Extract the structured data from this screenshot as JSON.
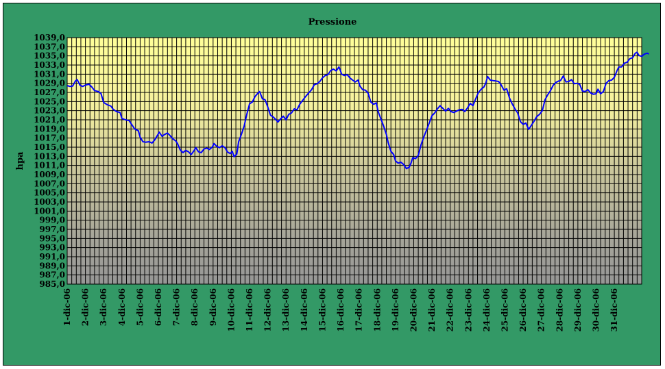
{
  "chart_data": {
    "type": "line",
    "title": "Pressione",
    "xlabel": "",
    "ylabel": "hpa",
    "ylim": [
      985.0,
      1039.0
    ],
    "y_ticks": [
      "1039,0",
      "1037,0",
      "1035,0",
      "1033,0",
      "1031,0",
      "1029,0",
      "1027,0",
      "1025,0",
      "1023,0",
      "1021,0",
      "1019,0",
      "1017,0",
      "1015,0",
      "1013,0",
      "1011,0",
      "1009,0",
      "1007,0",
      "1005,0",
      "1003,0",
      "1001,0",
      "999,0",
      "997,0",
      "995,0",
      "993,0",
      "991,0",
      "989,0",
      "987,0",
      "985,0"
    ],
    "categories": [
      "1-dic-06",
      "2-dic-06",
      "3-dic-06",
      "4-dic-06",
      "5-dic-06",
      "6-dic-06",
      "7-dic-06",
      "8-dic-06",
      "9-dic-06",
      "10-dic-06",
      "11-dic-06",
      "12-dic-06",
      "13-dic-06",
      "14-dic-06",
      "15-dic-06",
      "16-dic-06",
      "17-dic-06",
      "18-dic-06",
      "19-dic-06",
      "20-dic-06",
      "21-dic-06",
      "22-dic-06",
      "23-dic-06",
      "24-dic-06",
      "25-dic-06",
      "26-dic-06",
      "27-dic-06",
      "28-dic-06",
      "29-dic-06",
      "30-dic-06",
      "31-dic-06"
    ],
    "x_range_days": [
      0,
      31.5
    ],
    "grid": true,
    "series": [
      {
        "name": "",
        "color": "#0000ff",
        "points": [
          [
            0.0,
            1028.5
          ],
          [
            0.15,
            1028.3
          ],
          [
            0.3,
            1028.4
          ],
          [
            0.45,
            1029.5
          ],
          [
            0.55,
            1029.8
          ],
          [
            0.7,
            1028.6
          ],
          [
            0.85,
            1028.3
          ],
          [
            1.0,
            1028.6
          ],
          [
            1.2,
            1028.8
          ],
          [
            1.35,
            1028.2
          ],
          [
            1.5,
            1027.4
          ],
          [
            1.7,
            1027.2
          ],
          [
            1.85,
            1026.8
          ],
          [
            2.0,
            1024.8
          ],
          [
            2.2,
            1024.3
          ],
          [
            2.4,
            1024.0
          ],
          [
            2.5,
            1023.4
          ],
          [
            2.7,
            1022.8
          ],
          [
            2.9,
            1022.6
          ],
          [
            3.0,
            1021.3
          ],
          [
            3.2,
            1021.0
          ],
          [
            3.4,
            1020.8
          ],
          [
            3.5,
            1020.2
          ],
          [
            3.7,
            1019.0
          ],
          [
            3.9,
            1018.6
          ],
          [
            4.0,
            1017.2
          ],
          [
            4.15,
            1016.2
          ],
          [
            4.3,
            1016.1
          ],
          [
            4.5,
            1016.2
          ],
          [
            4.65,
            1015.9
          ],
          [
            4.8,
            1016.6
          ],
          [
            4.95,
            1017.6
          ],
          [
            5.05,
            1018.3
          ],
          [
            5.2,
            1017.4
          ],
          [
            5.35,
            1017.8
          ],
          [
            5.5,
            1018.1
          ],
          [
            5.65,
            1017.5
          ],
          [
            5.8,
            1016.8
          ],
          [
            5.95,
            1016.4
          ],
          [
            6.05,
            1015.8
          ],
          [
            6.2,
            1014.4
          ],
          [
            6.35,
            1013.8
          ],
          [
            6.5,
            1014.3
          ],
          [
            6.65,
            1014.0
          ],
          [
            6.8,
            1013.4
          ],
          [
            6.95,
            1014.2
          ],
          [
            7.05,
            1014.9
          ],
          [
            7.2,
            1014.0
          ],
          [
            7.35,
            1013.8
          ],
          [
            7.5,
            1014.6
          ],
          [
            7.65,
            1014.8
          ],
          [
            7.8,
            1014.5
          ],
          [
            7.95,
            1015.0
          ],
          [
            8.05,
            1015.8
          ],
          [
            8.2,
            1015.2
          ],
          [
            8.35,
            1014.9
          ],
          [
            8.5,
            1015.3
          ],
          [
            8.65,
            1014.9
          ],
          [
            8.8,
            1013.9
          ],
          [
            8.95,
            1013.6
          ],
          [
            9.05,
            1014.1
          ],
          [
            9.15,
            1012.9
          ],
          [
            9.3,
            1013.5
          ],
          [
            9.4,
            1016.2
          ],
          [
            9.55,
            1017.8
          ],
          [
            9.7,
            1019.6
          ],
          [
            9.85,
            1022.2
          ],
          [
            10.0,
            1024.5
          ],
          [
            10.15,
            1024.9
          ],
          [
            10.3,
            1026.1
          ],
          [
            10.45,
            1026.8
          ],
          [
            10.55,
            1027.2
          ],
          [
            10.7,
            1025.6
          ],
          [
            10.85,
            1025.4
          ],
          [
            11.0,
            1023.8
          ],
          [
            11.15,
            1022.0
          ],
          [
            11.3,
            1021.6
          ],
          [
            11.45,
            1021.0
          ],
          [
            11.55,
            1020.5
          ],
          [
            11.7,
            1021.2
          ],
          [
            11.85,
            1021.8
          ],
          [
            12.0,
            1021.0
          ],
          [
            12.15,
            1022.2
          ],
          [
            12.3,
            1022.5
          ],
          [
            12.45,
            1023.4
          ],
          [
            12.6,
            1023.2
          ],
          [
            12.75,
            1024.4
          ],
          [
            12.9,
            1025.2
          ],
          [
            13.05,
            1026.0
          ],
          [
            13.2,
            1026.7
          ],
          [
            13.4,
            1027.6
          ],
          [
            13.55,
            1028.7
          ],
          [
            13.7,
            1028.9
          ],
          [
            13.85,
            1029.4
          ],
          [
            14.0,
            1030.2
          ],
          [
            14.15,
            1030.7
          ],
          [
            14.3,
            1030.9
          ],
          [
            14.45,
            1031.8
          ],
          [
            14.6,
            1032.1
          ],
          [
            14.75,
            1031.7
          ],
          [
            14.9,
            1032.6
          ],
          [
            15.05,
            1031.0
          ],
          [
            15.2,
            1030.7
          ],
          [
            15.35,
            1030.9
          ],
          [
            15.5,
            1030.2
          ],
          [
            15.65,
            1029.7
          ],
          [
            15.8,
            1029.3
          ],
          [
            15.95,
            1029.7
          ],
          [
            16.05,
            1028.4
          ],
          [
            16.2,
            1027.6
          ],
          [
            16.35,
            1027.5
          ],
          [
            16.5,
            1026.8
          ],
          [
            16.65,
            1024.9
          ],
          [
            16.8,
            1024.4
          ],
          [
            16.95,
            1024.7
          ],
          [
            17.05,
            1022.8
          ],
          [
            17.2,
            1021.2
          ],
          [
            17.35,
            1019.6
          ],
          [
            17.5,
            1017.8
          ],
          [
            17.6,
            1016.0
          ],
          [
            17.75,
            1014.1
          ],
          [
            17.9,
            1013.4
          ],
          [
            18.0,
            1012.0
          ],
          [
            18.15,
            1011.5
          ],
          [
            18.3,
            1011.7
          ],
          [
            18.45,
            1011.2
          ],
          [
            18.6,
            1010.3
          ],
          [
            18.75,
            1010.6
          ],
          [
            18.85,
            1011.5
          ],
          [
            18.95,
            1012.7
          ],
          [
            19.1,
            1012.5
          ],
          [
            19.25,
            1013.2
          ],
          [
            19.4,
            1015.5
          ],
          [
            19.55,
            1017.2
          ],
          [
            19.7,
            1018.7
          ],
          [
            19.85,
            1020.3
          ],
          [
            20.0,
            1021.9
          ],
          [
            20.15,
            1022.5
          ],
          [
            20.3,
            1023.4
          ],
          [
            20.45,
            1024.1
          ],
          [
            20.6,
            1023.5
          ],
          [
            20.75,
            1022.9
          ],
          [
            20.9,
            1023.5
          ],
          [
            21.05,
            1022.8
          ],
          [
            21.2,
            1022.6
          ],
          [
            21.35,
            1022.9
          ],
          [
            21.5,
            1023.2
          ],
          [
            21.65,
            1023.3
          ],
          [
            21.8,
            1022.8
          ],
          [
            21.95,
            1023.6
          ],
          [
            22.1,
            1024.6
          ],
          [
            22.25,
            1024.1
          ],
          [
            22.4,
            1025.6
          ],
          [
            22.55,
            1027.0
          ],
          [
            22.7,
            1027.7
          ],
          [
            22.85,
            1028.2
          ],
          [
            22.95,
            1029.0
          ],
          [
            23.05,
            1030.5
          ],
          [
            23.2,
            1029.7
          ],
          [
            23.35,
            1029.6
          ],
          [
            23.5,
            1029.5
          ],
          [
            23.65,
            1029.4
          ],
          [
            23.8,
            1028.6
          ],
          [
            23.95,
            1027.5
          ],
          [
            24.1,
            1027.8
          ],
          [
            24.25,
            1025.8
          ],
          [
            24.4,
            1024.5
          ],
          [
            24.55,
            1023.4
          ],
          [
            24.7,
            1022.5
          ],
          [
            24.85,
            1020.6
          ],
          [
            25.0,
            1020.0
          ],
          [
            25.15,
            1020.3
          ],
          [
            25.3,
            1018.9
          ],
          [
            25.45,
            1019.8
          ],
          [
            25.6,
            1020.7
          ],
          [
            25.75,
            1021.7
          ],
          [
            25.9,
            1022.2
          ],
          [
            26.05,
            1023.0
          ],
          [
            26.2,
            1025.4
          ],
          [
            26.35,
            1026.5
          ],
          [
            26.5,
            1027.4
          ],
          [
            26.65,
            1028.6
          ],
          [
            26.8,
            1029.2
          ],
          [
            26.95,
            1029.5
          ],
          [
            27.05,
            1029.6
          ],
          [
            27.2,
            1030.6
          ],
          [
            27.35,
            1029.3
          ],
          [
            27.5,
            1029.4
          ],
          [
            27.65,
            1029.8
          ],
          [
            27.8,
            1028.9
          ],
          [
            27.95,
            1029.0
          ],
          [
            28.1,
            1028.8
          ],
          [
            28.25,
            1027.3
          ],
          [
            28.4,
            1027.2
          ],
          [
            28.55,
            1027.6
          ],
          [
            28.7,
            1026.9
          ],
          [
            28.85,
            1026.6
          ],
          [
            29.0,
            1026.7
          ],
          [
            29.1,
            1027.7
          ],
          [
            29.25,
            1026.7
          ],
          [
            29.4,
            1027.2
          ],
          [
            29.55,
            1029.0
          ],
          [
            29.7,
            1029.6
          ],
          [
            29.85,
            1029.7
          ],
          [
            30.0,
            1030.3
          ],
          [
            30.15,
            1031.8
          ],
          [
            30.25,
            1032.6
          ],
          [
            30.4,
            1032.6
          ],
          [
            30.55,
            1033.4
          ],
          [
            30.7,
            1033.6
          ],
          [
            30.85,
            1034.4
          ],
          [
            31.0,
            1034.6
          ],
          [
            31.15,
            1035.6
          ],
          [
            31.25,
            1035.8
          ],
          [
            31.35,
            1035.1
          ],
          [
            31.5,
            1034.9
          ],
          [
            31.65,
            1035.4
          ],
          [
            31.8,
            1035.6
          ],
          [
            31.9,
            1035.4
          ]
        ]
      }
    ]
  }
}
